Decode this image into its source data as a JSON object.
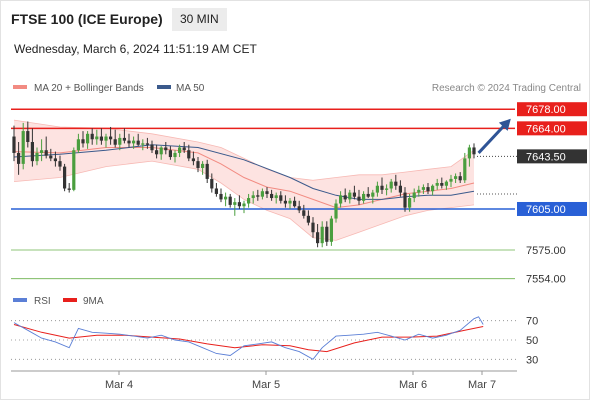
{
  "header": {
    "title": "FTSE 100 (ICE Europe)",
    "interval": "30 MIN",
    "timestamp": "Wednesday, March 6, 2024 11:51:19 AM CET",
    "credit": "Research © 2024 Trading Central"
  },
  "chart_data": [
    {
      "type": "candlestick",
      "legend": [
        {
          "name": "MA 20 + Bollinger Bands",
          "color": "#f28b82"
        },
        {
          "name": "MA 50",
          "color": "#3b5a8c"
        }
      ],
      "legend_placement": "top-left",
      "ylim": [
        7545,
        7684
      ],
      "x_labels": [
        "Mar 4",
        "Mar 5",
        "Mar 6",
        "Mar 7"
      ],
      "grid": false,
      "levels": [
        {
          "value": 7678.0,
          "label": "7678.00",
          "color": "#e8201c",
          "type": "resistance"
        },
        {
          "value": 7664.0,
          "label": "7664.00",
          "color": "#e8201c",
          "type": "resistance"
        },
        {
          "value": 7643.5,
          "label": "7643.50",
          "color": "#333333",
          "type": "last"
        },
        {
          "value": 7605.0,
          "label": "7605.00",
          "color": "#2960d6",
          "type": "support"
        },
        {
          "value": 7575.0,
          "label": "7575.00",
          "color": "#6ab04c",
          "type": "target"
        },
        {
          "value": 7554.0,
          "label": "7554.00",
          "color": "#6ab04c",
          "type": "target"
        }
      ],
      "bull_color": "#4a9e3e",
      "bear_color": "#333333",
      "candles": [
        [
          7658,
          7666,
          7640,
          7646
        ],
        [
          7646,
          7654,
          7630,
          7638
        ],
        [
          7638,
          7668,
          7634,
          7662
        ],
        [
          7662,
          7669,
          7650,
          7654
        ],
        [
          7654,
          7664,
          7636,
          7640
        ],
        [
          7640,
          7650,
          7637,
          7646
        ],
        [
          7646,
          7656,
          7640,
          7648
        ],
        [
          7648,
          7658,
          7642,
          7644
        ],
        [
          7644,
          7649,
          7640,
          7642
        ],
        [
          7642,
          7647,
          7636,
          7640
        ],
        [
          7640,
          7644,
          7633,
          7636
        ],
        [
          7636,
          7638,
          7618,
          7620
        ],
        [
          7620,
          7624,
          7617,
          7619
        ],
        [
          7619,
          7650,
          7618,
          7648
        ],
        [
          7648,
          7660,
          7646,
          7656
        ],
        [
          7656,
          7662,
          7650,
          7653
        ],
        [
          7653,
          7662,
          7649,
          7660
        ],
        [
          7660,
          7664,
          7652,
          7656
        ],
        [
          7656,
          7663,
          7652,
          7658
        ],
        [
          7658,
          7664,
          7652,
          7655
        ],
        [
          7655,
          7660,
          7650,
          7658
        ],
        [
          7658,
          7665,
          7652,
          7656
        ],
        [
          7656,
          7663,
          7650,
          7652
        ],
        [
          7652,
          7660,
          7648,
          7657
        ],
        [
          7657,
          7664,
          7653,
          7655
        ],
        [
          7655,
          7660,
          7650,
          7653
        ],
        [
          7653,
          7658,
          7649,
          7655
        ],
        [
          7655,
          7660,
          7651,
          7652
        ],
        [
          7652,
          7656,
          7648,
          7653
        ],
        [
          7653,
          7657,
          7649,
          7652
        ],
        [
          7652,
          7655,
          7646,
          7648
        ],
        [
          7648,
          7652,
          7642,
          7645
        ],
        [
          7645,
          7651,
          7641,
          7650
        ],
        [
          7650,
          7654,
          7645,
          7648
        ],
        [
          7648,
          7651,
          7641,
          7643
        ],
        [
          7643,
          7648,
          7639,
          7646
        ],
        [
          7646,
          7652,
          7643,
          7650
        ],
        [
          7650,
          7654,
          7646,
          7648
        ],
        [
          7648,
          7652,
          7640,
          7642
        ],
        [
          7642,
          7647,
          7637,
          7640
        ],
        [
          7640,
          7643,
          7632,
          7635
        ],
        [
          7635,
          7640,
          7630,
          7638
        ],
        [
          7638,
          7641,
          7624,
          7627
        ],
        [
          7627,
          7631,
          7617,
          7620
        ],
        [
          7620,
          7624,
          7614,
          7616
        ],
        [
          7616,
          7620,
          7610,
          7612
        ],
        [
          7612,
          7617,
          7607,
          7614
        ],
        [
          7614,
          7616,
          7606,
          7608
        ],
        [
          7608,
          7613,
          7600,
          7610
        ],
        [
          7610,
          7615,
          7605,
          7607
        ],
        [
          7607,
          7611,
          7602,
          7609
        ],
        [
          7609,
          7616,
          7606,
          7613
        ],
        [
          7613,
          7618,
          7609,
          7615
        ],
        [
          7615,
          7619,
          7611,
          7614
        ],
        [
          7614,
          7620,
          7612,
          7618
        ],
        [
          7618,
          7621,
          7613,
          7616
        ],
        [
          7616,
          7619,
          7611,
          7613
        ],
        [
          7613,
          7617,
          7609,
          7615
        ],
        [
          7615,
          7618,
          7609,
          7611
        ],
        [
          7611,
          7615,
          7606,
          7609
        ],
        [
          7609,
          7613,
          7605,
          7611
        ],
        [
          7611,
          7614,
          7606,
          7607
        ],
        [
          7607,
          7611,
          7602,
          7604
        ],
        [
          7604,
          7608,
          7598,
          7600
        ],
        [
          7600,
          7604,
          7593,
          7595
        ],
        [
          7595,
          7599,
          7584,
          7588
        ],
        [
          7588,
          7594,
          7577,
          7580
        ],
        [
          7580,
          7596,
          7577,
          7592
        ],
        [
          7592,
          7596,
          7578,
          7581
        ],
        [
          7581,
          7600,
          7578,
          7598
        ],
        [
          7598,
          7612,
          7595,
          7609
        ],
        [
          7609,
          7618,
          7606,
          7615
        ],
        [
          7615,
          7620,
          7610,
          7612
        ],
        [
          7612,
          7619,
          7609,
          7617
        ],
        [
          7617,
          7622,
          7612,
          7614
        ],
        [
          7614,
          7619,
          7608,
          7611
        ],
        [
          7611,
          7618,
          7609,
          7616
        ],
        [
          7616,
          7621,
          7613,
          7614
        ],
        [
          7614,
          7619,
          7609,
          7617
        ],
        [
          7617,
          7625,
          7614,
          7622
        ],
        [
          7622,
          7628,
          7616,
          7619
        ],
        [
          7619,
          7623,
          7615,
          7620
        ],
        [
          7620,
          7627,
          7617,
          7625
        ],
        [
          7625,
          7630,
          7619,
          7622
        ],
        [
          7622,
          7626,
          7614,
          7617
        ],
        [
          7617,
          7621,
          7603,
          7606
        ],
        [
          7606,
          7616,
          7603,
          7613
        ],
        [
          7613,
          7620,
          7610,
          7617
        ],
        [
          7617,
          7622,
          7614,
          7619
        ],
        [
          7619,
          7623,
          7616,
          7621
        ],
        [
          7621,
          7624,
          7616,
          7618
        ],
        [
          7618,
          7623,
          7615,
          7622
        ],
        [
          7622,
          7627,
          7619,
          7624
        ],
        [
          7624,
          7628,
          7620,
          7622
        ],
        [
          7622,
          7626,
          7619,
          7625
        ],
        [
          7625,
          7630,
          7621,
          7627
        ],
        [
          7627,
          7631,
          7624,
          7629
        ],
        [
          7629,
          7632,
          7624,
          7626
        ],
        [
          7626,
          7646,
          7624,
          7642
        ],
        [
          7642,
          7652,
          7636,
          7650
        ],
        [
          7650,
          7653,
          7642,
          7645
        ]
      ],
      "ma20": [
        [
          0,
          7647
        ],
        [
          10,
          7646
        ],
        [
          20,
          7650
        ],
        [
          30,
          7650
        ],
        [
          40,
          7646
        ],
        [
          45,
          7638
        ],
        [
          50,
          7628
        ],
        [
          55,
          7621
        ],
        [
          60,
          7618
        ],
        [
          65,
          7612
        ],
        [
          70,
          7606
        ],
        [
          75,
          7608
        ],
        [
          80,
          7612
        ],
        [
          85,
          7616
        ],
        [
          90,
          7618
        ],
        [
          95,
          7620
        ],
        [
          100,
          7624
        ]
      ],
      "ma50": [
        [
          0,
          7643
        ],
        [
          10,
          7645
        ],
        [
          20,
          7648
        ],
        [
          30,
          7652
        ],
        [
          40,
          7650
        ],
        [
          50,
          7641
        ],
        [
          60,
          7628
        ],
        [
          65,
          7620
        ],
        [
          70,
          7615
        ],
        [
          75,
          7612
        ],
        [
          80,
          7612
        ],
        [
          85,
          7614
        ],
        [
          90,
          7615
        ],
        [
          95,
          7615
        ],
        [
          100,
          7618
        ]
      ],
      "bb_upper": [
        [
          0,
          7670
        ],
        [
          10,
          7665
        ],
        [
          20,
          7664
        ],
        [
          30,
          7660
        ],
        [
          40,
          7654
        ],
        [
          45,
          7650
        ],
        [
          50,
          7642
        ],
        [
          55,
          7634
        ],
        [
          60,
          7628
        ],
        [
          65,
          7626
        ],
        [
          70,
          7628
        ],
        [
          75,
          7630
        ],
        [
          80,
          7630
        ],
        [
          85,
          7632
        ],
        [
          90,
          7634
        ],
        [
          95,
          7636
        ],
        [
          100,
          7648
        ]
      ],
      "bb_lower": [
        [
          0,
          7625
        ],
        [
          10,
          7628
        ],
        [
          20,
          7636
        ],
        [
          30,
          7640
        ],
        [
          40,
          7634
        ],
        [
          45,
          7624
        ],
        [
          50,
          7612
        ],
        [
          55,
          7604
        ],
        [
          60,
          7598
        ],
        [
          65,
          7584
        ],
        [
          70,
          7582
        ],
        [
          75,
          7588
        ],
        [
          80,
          7594
        ],
        [
          85,
          7600
        ],
        [
          90,
          7604
        ],
        [
          95,
          7606
        ],
        [
          100,
          7608
        ]
      ],
      "forecast_arrow": {
        "from": [
          101,
          7646
        ],
        "to": [
          108,
          7671
        ],
        "color": "#2f5496"
      }
    },
    {
      "type": "line",
      "legend": [
        {
          "name": "RSI",
          "color": "#5b7fd6"
        },
        {
          "name": "9MA",
          "color": "#e8201c"
        }
      ],
      "ylim": [
        20,
        80
      ],
      "y_ticks": [
        "70",
        "50",
        "30"
      ],
      "rsi": [
        [
          0,
          68
        ],
        [
          3,
          60
        ],
        [
          6,
          52
        ],
        [
          9,
          48
        ],
        [
          12,
          42
        ],
        [
          14,
          62
        ],
        [
          17,
          58
        ],
        [
          20,
          57
        ],
        [
          23,
          56
        ],
        [
          26,
          54
        ],
        [
          29,
          52
        ],
        [
          32,
          55
        ],
        [
          35,
          50
        ],
        [
          38,
          48
        ],
        [
          41,
          42
        ],
        [
          44,
          36
        ],
        [
          47,
          34
        ],
        [
          50,
          44
        ],
        [
          53,
          46
        ],
        [
          56,
          48
        ],
        [
          59,
          42
        ],
        [
          62,
          38
        ],
        [
          65,
          30
        ],
        [
          67,
          42
        ],
        [
          70,
          54
        ],
        [
          73,
          55
        ],
        [
          76,
          56
        ],
        [
          79,
          58
        ],
        [
          82,
          54
        ],
        [
          85,
          50
        ],
        [
          88,
          56
        ],
        [
          91,
          52
        ],
        [
          94,
          55
        ],
        [
          97,
          60
        ],
        [
          100,
          72
        ],
        [
          101,
          74
        ],
        [
          102,
          66
        ]
      ],
      "ma9": [
        [
          0,
          66
        ],
        [
          6,
          58
        ],
        [
          12,
          52
        ],
        [
          18,
          55
        ],
        [
          24,
          55
        ],
        [
          30,
          53
        ],
        [
          36,
          51
        ],
        [
          42,
          46
        ],
        [
          48,
          42
        ],
        [
          54,
          45
        ],
        [
          60,
          44
        ],
        [
          64,
          40
        ],
        [
          68,
          38
        ],
        [
          74,
          47
        ],
        [
          80,
          53
        ],
        [
          86,
          53
        ],
        [
          92,
          54
        ],
        [
          98,
          60
        ],
        [
          102,
          64
        ]
      ]
    }
  ]
}
